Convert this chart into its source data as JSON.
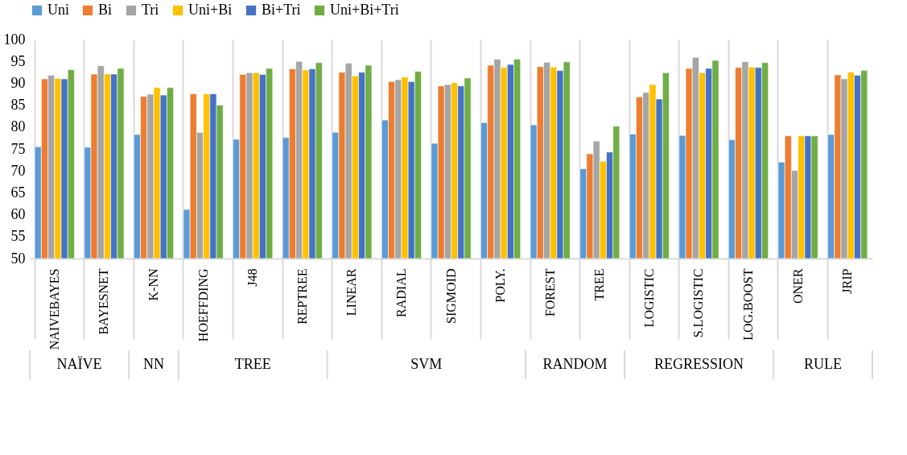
{
  "chart_data": {
    "type": "bar",
    "categories": [
      "NAIVEBAYES",
      "BAYESNET",
      "K-NN",
      "HOEFFDING",
      "J48",
      "REPTREE",
      "LINEAR",
      "RADIAL",
      "SIGMOID",
      "POLY.",
      "FOREST",
      "TREE",
      "LOGISTIC",
      "S.LOGISTIC",
      "LOG.BOOST",
      "ONER",
      "JRIP"
    ],
    "series": [
      {
        "name": "Uni",
        "color": "#5b9bd5",
        "values": [
          75.5,
          75.4,
          78.3,
          61.2,
          77.2,
          77.6,
          78.8,
          81.6,
          76.3,
          81,
          80.5,
          70.5,
          78.4,
          78.1,
          77.1,
          72,
          78.3
        ]
      },
      {
        "name": "Bi",
        "color": "#ed7d31",
        "values": [
          91,
          92.1,
          87,
          87.6,
          92,
          93.3,
          92.5,
          90.4,
          89.4,
          94.1,
          93.8,
          73.9,
          86.9,
          93.4,
          93.6,
          78,
          91.9
        ]
      },
      {
        "name": "Tri",
        "color": "#a5a5a5",
        "values": [
          91.8,
          94,
          87.5,
          78.8,
          92.4,
          95,
          94.6,
          90.8,
          89.7,
          95.5,
          94.8,
          76.8,
          87.9,
          95.9,
          94.9,
          70.1,
          91
        ]
      },
      {
        "name": "Uni+Bi",
        "color": "#ffc000",
        "values": [
          91.1,
          92.1,
          89,
          87.6,
          92.4,
          93,
          91.7,
          91.4,
          90.1,
          93.6,
          93.7,
          72.2,
          89.7,
          92.4,
          93.7,
          78,
          92.5
        ]
      },
      {
        "name": "Bi+Tri",
        "color": "#4472c4",
        "values": [
          91,
          92.1,
          87.3,
          87.6,
          92,
          93.3,
          92.5,
          90.4,
          89.4,
          94.3,
          92.9,
          74.3,
          86.4,
          93.4,
          93.6,
          78,
          91.8
        ]
      },
      {
        "name": "Uni+Bi+Tri",
        "color": "#70ad47",
        "values": [
          93.1,
          93.4,
          89,
          85,
          93.4,
          94.7,
          94.1,
          92.7,
          91.2,
          95.5,
          94.9,
          80.2,
          92.4,
          95.2,
          94.7,
          78,
          92.9
        ]
      }
    ],
    "ylim": [
      50,
      100
    ],
    "yticks": [
      50,
      55,
      60,
      65,
      70,
      75,
      80,
      85,
      90,
      95,
      100
    ],
    "grid": "x",
    "legend": "top",
    "annotations": [
      "NAÏVE",
      "NN",
      "TREE",
      "SVM",
      "RANDOM",
      "REGRESSION",
      "RULE"
    ]
  }
}
